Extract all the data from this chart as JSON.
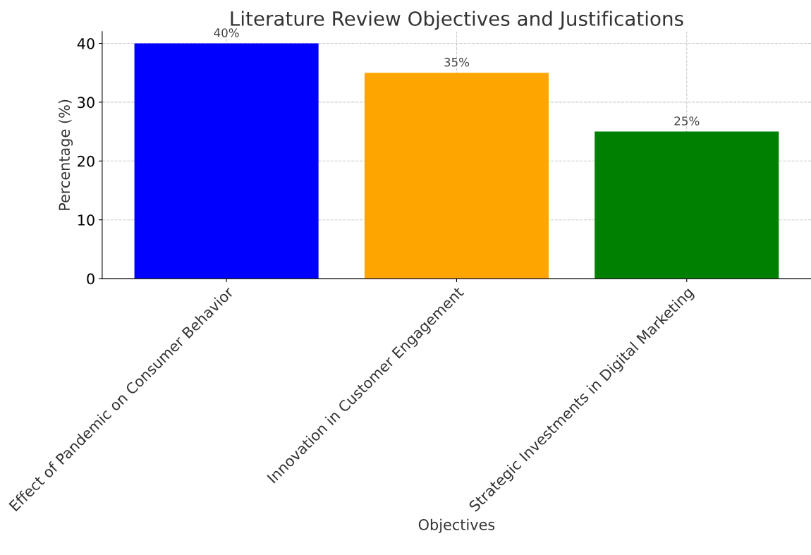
{
  "chart_data": {
    "type": "bar",
    "title": "Literature Review Objectives and Justifications",
    "xlabel": "Objectives",
    "ylabel": "Percentage (%)",
    "categories": [
      "Effect of Pandemic on Consumer Behavior",
      "Innovation in Customer Engagement",
      "Strategic Investments in Digital Marketing"
    ],
    "values": [
      40,
      35,
      25
    ],
    "colors": [
      "#0000ff",
      "#ffa500",
      "#008000"
    ],
    "value_labels": [
      "40%",
      "35%",
      "25%"
    ],
    "ylim": [
      0,
      42
    ],
    "yticks": [
      0,
      10,
      20,
      30,
      40
    ],
    "grid": true
  }
}
